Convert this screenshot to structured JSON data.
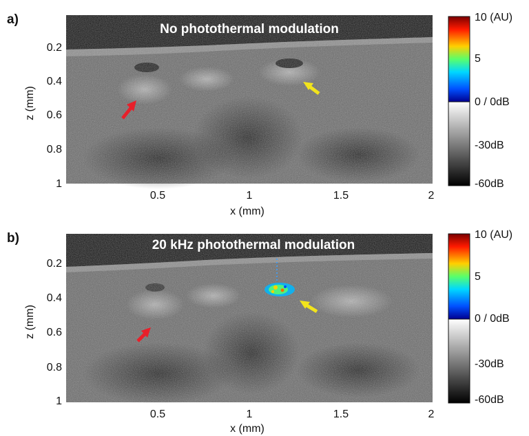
{
  "panels": [
    {
      "id": "a",
      "letter": "a)",
      "title": "No photothermal modulation",
      "x_label": "x (mm)",
      "z_label": "z (mm)",
      "x_ticks": [
        "0.5",
        "1",
        "1.5",
        "2"
      ],
      "z_ticks": [
        "0.2",
        "0.4",
        "0.6",
        "0.8",
        "1"
      ],
      "colorbar_labels": [
        "10 (AU)",
        "5",
        "0 / 0dB",
        "-30dB",
        "-60dB"
      ],
      "arrows": [
        {
          "name": "red-arrow",
          "color": "#e8202a"
        },
        {
          "name": "yellow-arrow",
          "color": "#f2e41c"
        }
      ],
      "has_signal": false
    },
    {
      "id": "b",
      "letter": "b)",
      "title": "20 kHz photothermal modulation",
      "x_label": "x (mm)",
      "z_label": "z (mm)",
      "x_ticks": [
        "0.5",
        "1",
        "1.5",
        "2"
      ],
      "z_ticks": [
        "0.2",
        "0.4",
        "0.6",
        "0.8",
        "1"
      ],
      "colorbar_labels": [
        "10 (AU)",
        "5",
        "0 / 0dB",
        "-30dB",
        "-60dB"
      ],
      "arrows": [
        {
          "name": "red-arrow",
          "color": "#e8202a"
        },
        {
          "name": "yellow-arrow",
          "color": "#f2e41c"
        }
      ],
      "has_signal": true
    }
  ]
}
